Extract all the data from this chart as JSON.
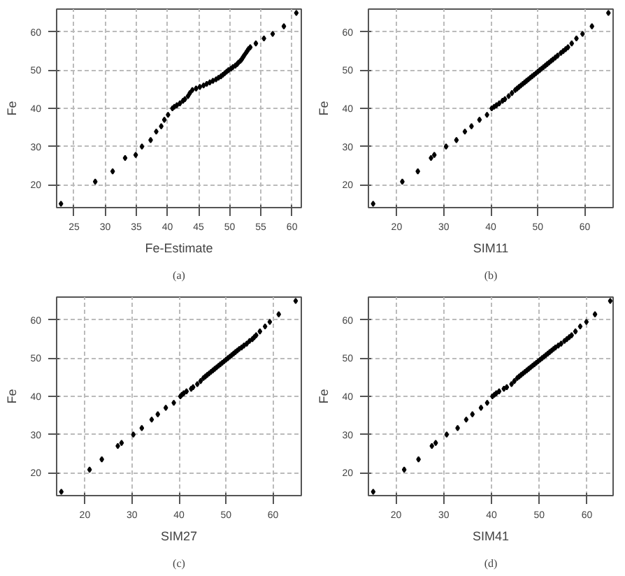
{
  "chart_data": [
    {
      "type": "scatter",
      "xlabel": "Fe-Estimate",
      "ylabel": "Fe",
      "annotations": [
        "(a)"
      ],
      "color": "#000000",
      "marker": "diamond",
      "grid": true,
      "xlim": [
        22.2,
        61.5
      ],
      "ylim": [
        14,
        66
      ],
      "xticks": [
        25,
        30,
        35,
        40,
        45,
        50,
        55,
        60
      ],
      "yticks": [
        20,
        30,
        40,
        50,
        60
      ],
      "x": [
        22.9,
        28.4,
        31.2,
        33.2,
        34.9,
        35.9,
        37.3,
        38.2,
        39.0,
        39.5,
        40.1,
        40.8,
        41.1,
        41.5,
        42.0,
        42.5,
        42.8,
        43.3,
        43.6,
        44.0,
        44.6,
        45.2,
        45.8,
        46.3,
        46.8,
        47.3,
        47.8,
        48.2,
        48.6,
        48.9,
        49.2,
        49.5,
        49.8,
        50.2,
        50.5,
        50.9,
        51.2,
        51.4,
        51.7,
        51.9,
        52.1,
        52.3,
        52.6,
        52.8,
        53.0,
        53.3,
        54.2,
        55.5,
        56.9,
        58.7,
        60.7
      ],
      "values": [
        15,
        20.8,
        23.5,
        27,
        27.8,
        30,
        31.7,
        33.9,
        35.3,
        37,
        38.3,
        40,
        40.4,
        40.8,
        41.3,
        42,
        42.4,
        43.2,
        44,
        44.8,
        45.2,
        45.6,
        46,
        46.4,
        46.8,
        47.2,
        47.6,
        48,
        48.4,
        48.8,
        49.2,
        49.6,
        50,
        50.4,
        50.8,
        51.2,
        51.6,
        52,
        52.4,
        52.8,
        53.3,
        53.8,
        54.5,
        55,
        55.5,
        56,
        57,
        58.3,
        59.5,
        61.5,
        65
      ]
    },
    {
      "type": "scatter",
      "xlabel": "SIM11",
      "ylabel": "Fe",
      "annotations": [
        "(b)"
      ],
      "color": "#000000",
      "marker": "diamond",
      "grid": true,
      "xlim": [
        14,
        66
      ],
      "ylim": [
        14,
        66
      ],
      "xticks": [
        20,
        30,
        40,
        50,
        60
      ],
      "yticks": [
        20,
        30,
        40,
        50,
        60
      ],
      "x": [
        15.0,
        21.2,
        24.5,
        27.3,
        28.0,
        30.5,
        32.7,
        34.5,
        35.9,
        37.6,
        39.2,
        40.2,
        40.7,
        41.2,
        41.8,
        42.5,
        43.0,
        43.8,
        44.5,
        45.2,
        45.6,
        46.0,
        46.4,
        46.8,
        47.2,
        47.6,
        48.0,
        48.4,
        48.8,
        49.2,
        49.6,
        50.0,
        50.4,
        50.8,
        51.2,
        51.6,
        52.0,
        52.4,
        52.8,
        53.2,
        53.7,
        54.2,
        54.9,
        55.4,
        55.9,
        56.4,
        57.2,
        58.2,
        59.5,
        61.5,
        65.0
      ],
      "values": [
        15,
        20.8,
        23.5,
        27,
        27.8,
        30,
        31.7,
        33.9,
        35.3,
        37,
        38.3,
        40,
        40.4,
        40.8,
        41.3,
        42,
        42.4,
        43.2,
        44,
        44.8,
        45.2,
        45.6,
        46,
        46.4,
        46.8,
        47.2,
        47.6,
        48,
        48.4,
        48.8,
        49.2,
        49.6,
        50,
        50.4,
        50.8,
        51.2,
        51.6,
        52,
        52.4,
        52.8,
        53.3,
        53.8,
        54.5,
        55,
        55.5,
        56,
        57,
        58.3,
        59.5,
        61.5,
        65
      ]
    },
    {
      "type": "scatter",
      "xlabel": "SIM27",
      "ylabel": "Fe",
      "annotations": [
        "(c)"
      ],
      "color": "#000000",
      "marker": "diamond",
      "grid": true,
      "xlim": [
        14,
        66
      ],
      "ylim": [
        14,
        66
      ],
      "xticks": [
        20,
        30,
        40,
        50,
        60
      ],
      "yticks": [
        20,
        30,
        40,
        50,
        60
      ],
      "x": [
        15.0,
        21.0,
        23.6,
        27.0,
        27.8,
        30.3,
        32.1,
        34.2,
        35.5,
        37.2,
        38.9,
        40.3,
        40.6,
        41.0,
        41.6,
        42.6,
        43.0,
        43.9,
        44.6,
        45.2,
        45.6,
        46.0,
        46.4,
        46.8,
        47.2,
        47.6,
        48.0,
        48.4,
        48.8,
        49.2,
        49.6,
        50.0,
        50.4,
        50.8,
        51.2,
        51.6,
        52.0,
        52.4,
        52.8,
        53.3,
        53.8,
        54.4,
        55.0,
        55.6,
        56.0,
        56.4,
        57.2,
        58.3,
        59.3,
        61.2,
        64.8
      ],
      "values": [
        15,
        20.8,
        23.5,
        27,
        27.8,
        30,
        31.7,
        33.9,
        35.3,
        37,
        38.3,
        40,
        40.4,
        40.8,
        41.3,
        42,
        42.4,
        43.2,
        44,
        44.8,
        45.2,
        45.6,
        46,
        46.4,
        46.8,
        47.2,
        47.6,
        48,
        48.4,
        48.8,
        49.2,
        49.6,
        50,
        50.4,
        50.8,
        51.2,
        51.6,
        52,
        52.4,
        52.8,
        53.3,
        53.8,
        54.5,
        55,
        55.5,
        56,
        57,
        58.3,
        59.5,
        61.5,
        65
      ]
    },
    {
      "type": "scatter",
      "xlabel": "SIM41",
      "ylabel": "Fe",
      "annotations": [
        "(d)"
      ],
      "color": "#000000",
      "marker": "diamond",
      "grid": true,
      "xlim": [
        14.2,
        65.5
      ],
      "ylim": [
        14,
        66
      ],
      "xticks": [
        20,
        30,
        40,
        50,
        60
      ],
      "yticks": [
        20,
        30,
        40,
        50,
        60
      ],
      "x": [
        15.2,
        21.7,
        24.7,
        27.5,
        28.3,
        30.6,
        32.9,
        34.7,
        36.0,
        37.8,
        39.1,
        40.2,
        40.6,
        41.0,
        41.6,
        42.6,
        43.2,
        44.2,
        44.8,
        45.4,
        45.8,
        46.2,
        46.6,
        47.0,
        47.4,
        47.8,
        48.2,
        48.6,
        49.0,
        49.4,
        49.8,
        50.2,
        50.6,
        51.0,
        51.4,
        51.8,
        52.2,
        52.6,
        53.0,
        53.4,
        54.0,
        54.6,
        55.3,
        55.8,
        56.3,
        56.8,
        57.6,
        58.6,
        59.9,
        61.7,
        64.9
      ],
      "values": [
        15,
        20.8,
        23.5,
        27,
        27.8,
        30,
        31.7,
        33.9,
        35.3,
        37,
        38.3,
        40,
        40.4,
        40.8,
        41.3,
        42,
        42.4,
        43.2,
        44,
        44.8,
        45.2,
        45.6,
        46,
        46.4,
        46.8,
        47.2,
        47.6,
        48,
        48.4,
        48.8,
        49.2,
        49.6,
        50,
        50.4,
        50.8,
        51.2,
        51.6,
        52,
        52.4,
        52.8,
        53.3,
        53.8,
        54.5,
        55,
        55.5,
        56,
        57,
        58.3,
        59.5,
        61.5,
        65
      ]
    }
  ]
}
